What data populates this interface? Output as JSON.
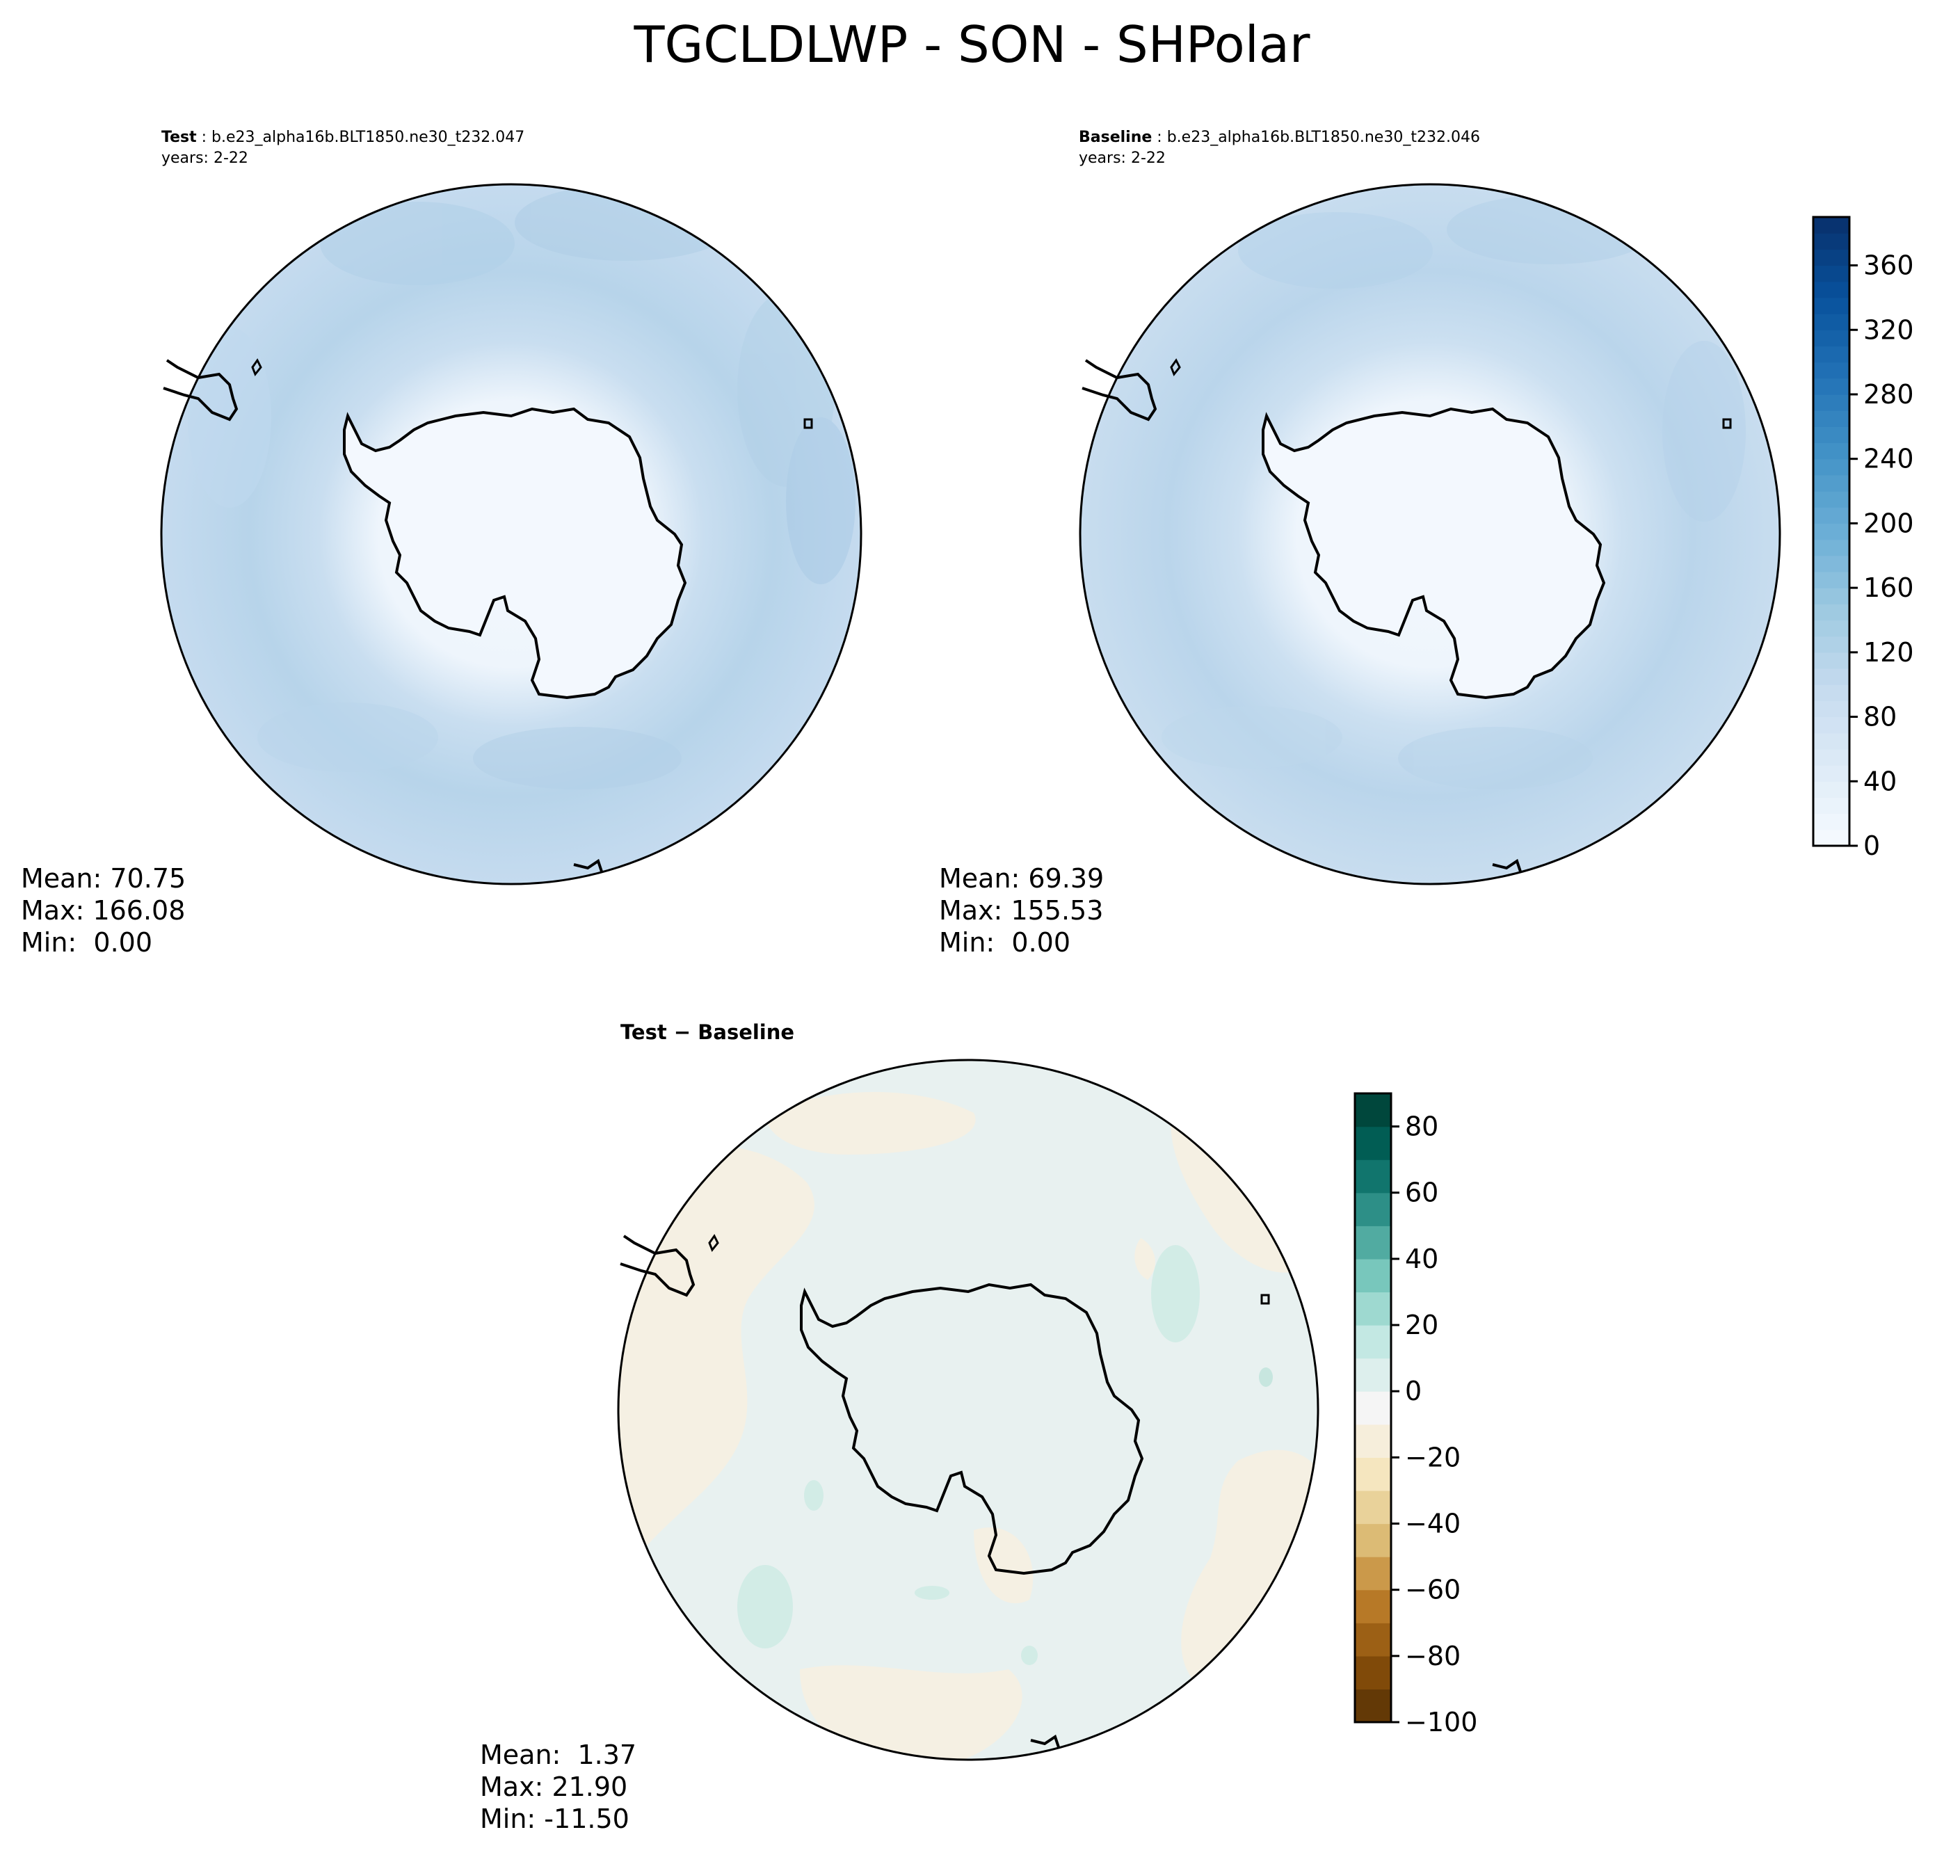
{
  "title": "TGCLDLWP - SON - SHPolar",
  "panels": {
    "test": {
      "label_bold": "Test",
      "case": "b.e23_alpha16b.BLT1850.ne30_t232.047",
      "years": "years: 2-22",
      "stats": {
        "mean": "Mean: 70.75",
        "max": "Max: 166.08",
        "min": "Min:  0.00"
      }
    },
    "baseline": {
      "label_bold": "Baseline",
      "case": "b.e23_alpha16b.BLT1850.ne30_t232.046",
      "years": "years: 2-22",
      "stats": {
        "mean": "Mean: 69.39",
        "max": "Max: 155.53",
        "min": "Min:  0.00"
      }
    },
    "diff": {
      "title_left": "Test",
      "title_sep": "−",
      "title_right": "Baseline",
      "stats": {
        "mean": "Mean:  1.37",
        "max": "Max: 21.90",
        "min": "Min: -11.50"
      }
    }
  },
  "chart_data": [
    {
      "type": "heatmap",
      "name": "test",
      "projection": "south-polar-stereographic",
      "stats": {
        "mean": 70.75,
        "max": 166.08,
        "min": 0.0
      },
      "colormap": "Blues",
      "colorbar_ref": "abs"
    },
    {
      "type": "heatmap",
      "name": "baseline",
      "projection": "south-polar-stereographic",
      "stats": {
        "mean": 69.39,
        "max": 155.53,
        "min": 0.0
      },
      "colormap": "Blues",
      "colorbar_ref": "abs"
    },
    {
      "type": "heatmap",
      "name": "diff",
      "projection": "south-polar-stereographic",
      "stats": {
        "mean": 1.37,
        "max": 21.9,
        "min": -11.5
      },
      "colormap": "BrBG",
      "colorbar_ref": "diff"
    }
  ],
  "colorbars": {
    "abs": {
      "vmin": 0,
      "vmax": 390,
      "ticks": [
        0,
        40,
        80,
        120,
        160,
        200,
        240,
        280,
        320,
        360
      ],
      "tick_labels": [
        "0",
        "40",
        "80",
        "120",
        "160",
        "200",
        "240",
        "280",
        "320",
        "360"
      ],
      "levels": 39,
      "colors": [
        "#f7fbff",
        "#deebf7",
        "#c6dbef",
        "#9ecae1",
        "#6baed6",
        "#4292c6",
        "#2171b5",
        "#08519c",
        "#08306b"
      ]
    },
    "diff": {
      "vmin": -100,
      "vmax": 90,
      "ticks": [
        -100,
        -80,
        -60,
        -40,
        -20,
        0,
        20,
        40,
        60,
        80
      ],
      "tick_labels": [
        "−100",
        "−80",
        "−60",
        "−40",
        "−20",
        "0",
        "20",
        "40",
        "60",
        "80"
      ],
      "levels": 19,
      "colors": [
        "#543005",
        "#8c510a",
        "#bf812d",
        "#dfc27d",
        "#f6e8c3",
        "#f5f5f5",
        "#c7eae5",
        "#80cdc1",
        "#35978f",
        "#01665e",
        "#003c30"
      ]
    }
  },
  "colors": {
    "land": "#f3f8fe",
    "ocean_test": "#c3daee",
    "ocean_baseline": "#c6dcef",
    "ocean_diff": "#e8f1f0",
    "diff_neg": "#f5f0e3",
    "diff_pos": "#d2ece6"
  }
}
